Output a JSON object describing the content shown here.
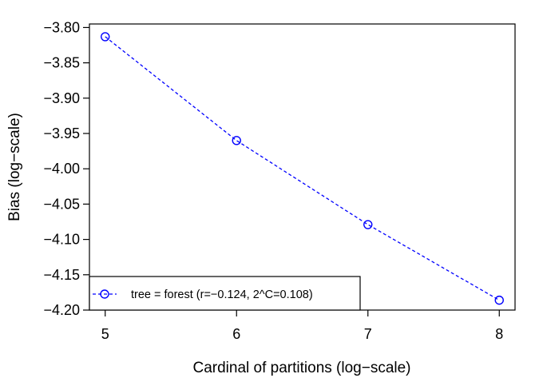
{
  "chart_data": {
    "type": "line",
    "title": "",
    "xlabel": "Cardinal of partitions (log−scale)",
    "ylabel": "Bias (log−scale)",
    "xlim": [
      4.88,
      8.12
    ],
    "ylim": [
      -4.2,
      -3.795
    ],
    "x_ticks": [
      {
        "value": 5,
        "label": "5"
      },
      {
        "value": 6,
        "label": "6"
      },
      {
        "value": 7,
        "label": "7"
      },
      {
        "value": 8,
        "label": "8"
      }
    ],
    "y_ticks": [
      {
        "value": -3.8,
        "label": "−3.80"
      },
      {
        "value": -3.85,
        "label": "−3.85"
      },
      {
        "value": -3.9,
        "label": "−3.90"
      },
      {
        "value": -3.95,
        "label": "−3.95"
      },
      {
        "value": -4.0,
        "label": "−4.00"
      },
      {
        "value": -4.05,
        "label": "−4.05"
      },
      {
        "value": -4.1,
        "label": "−4.10"
      },
      {
        "value": -4.15,
        "label": "−4.15"
      },
      {
        "value": -4.2,
        "label": "−4.20"
      }
    ],
    "grid": false,
    "legend_position": "bottom-left",
    "series": [
      {
        "name": "tree = forest (r=−0.124, 2^C=0.108)",
        "color": "#0000ff",
        "line_style": "dashed",
        "marker": "open-circle",
        "x": [
          5,
          6,
          7,
          8
        ],
        "y": [
          -3.813,
          -3.96,
          -4.079,
          -4.186
        ]
      }
    ]
  }
}
